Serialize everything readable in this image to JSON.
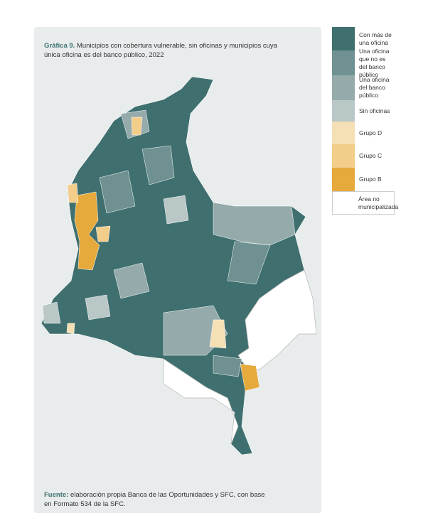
{
  "title": {
    "lead": "Gráfica 9.",
    "text": "Municipios con cobertura vulnerable, sin oficinas y municipios cuya única oficina es del banco público, 2022"
  },
  "legend": {
    "items": [
      {
        "label": "Con más de una oficina",
        "color": "#3f6f6f"
      },
      {
        "label": "Una oficina que no es del banco público",
        "color": "#6f9191"
      },
      {
        "label": "Una oficina del banco público",
        "color": "#95abab"
      },
      {
        "label": "Sin oficinas",
        "color": "#b9c7c7"
      },
      {
        "label": "Grupo D",
        "color": "#f5dfb4"
      },
      {
        "label": "Grupo C",
        "color": "#f3cd8a"
      },
      {
        "label": "Grupo B",
        "color": "#e6aa3c"
      },
      {
        "label": "Área no municipalizada",
        "color": "#ffffff"
      }
    ]
  },
  "source": {
    "lead": "Fuente:",
    "text": "elaboración propia Banca de las Oportunidades y SFC, con base en Formato 534 de la SFC."
  }
}
